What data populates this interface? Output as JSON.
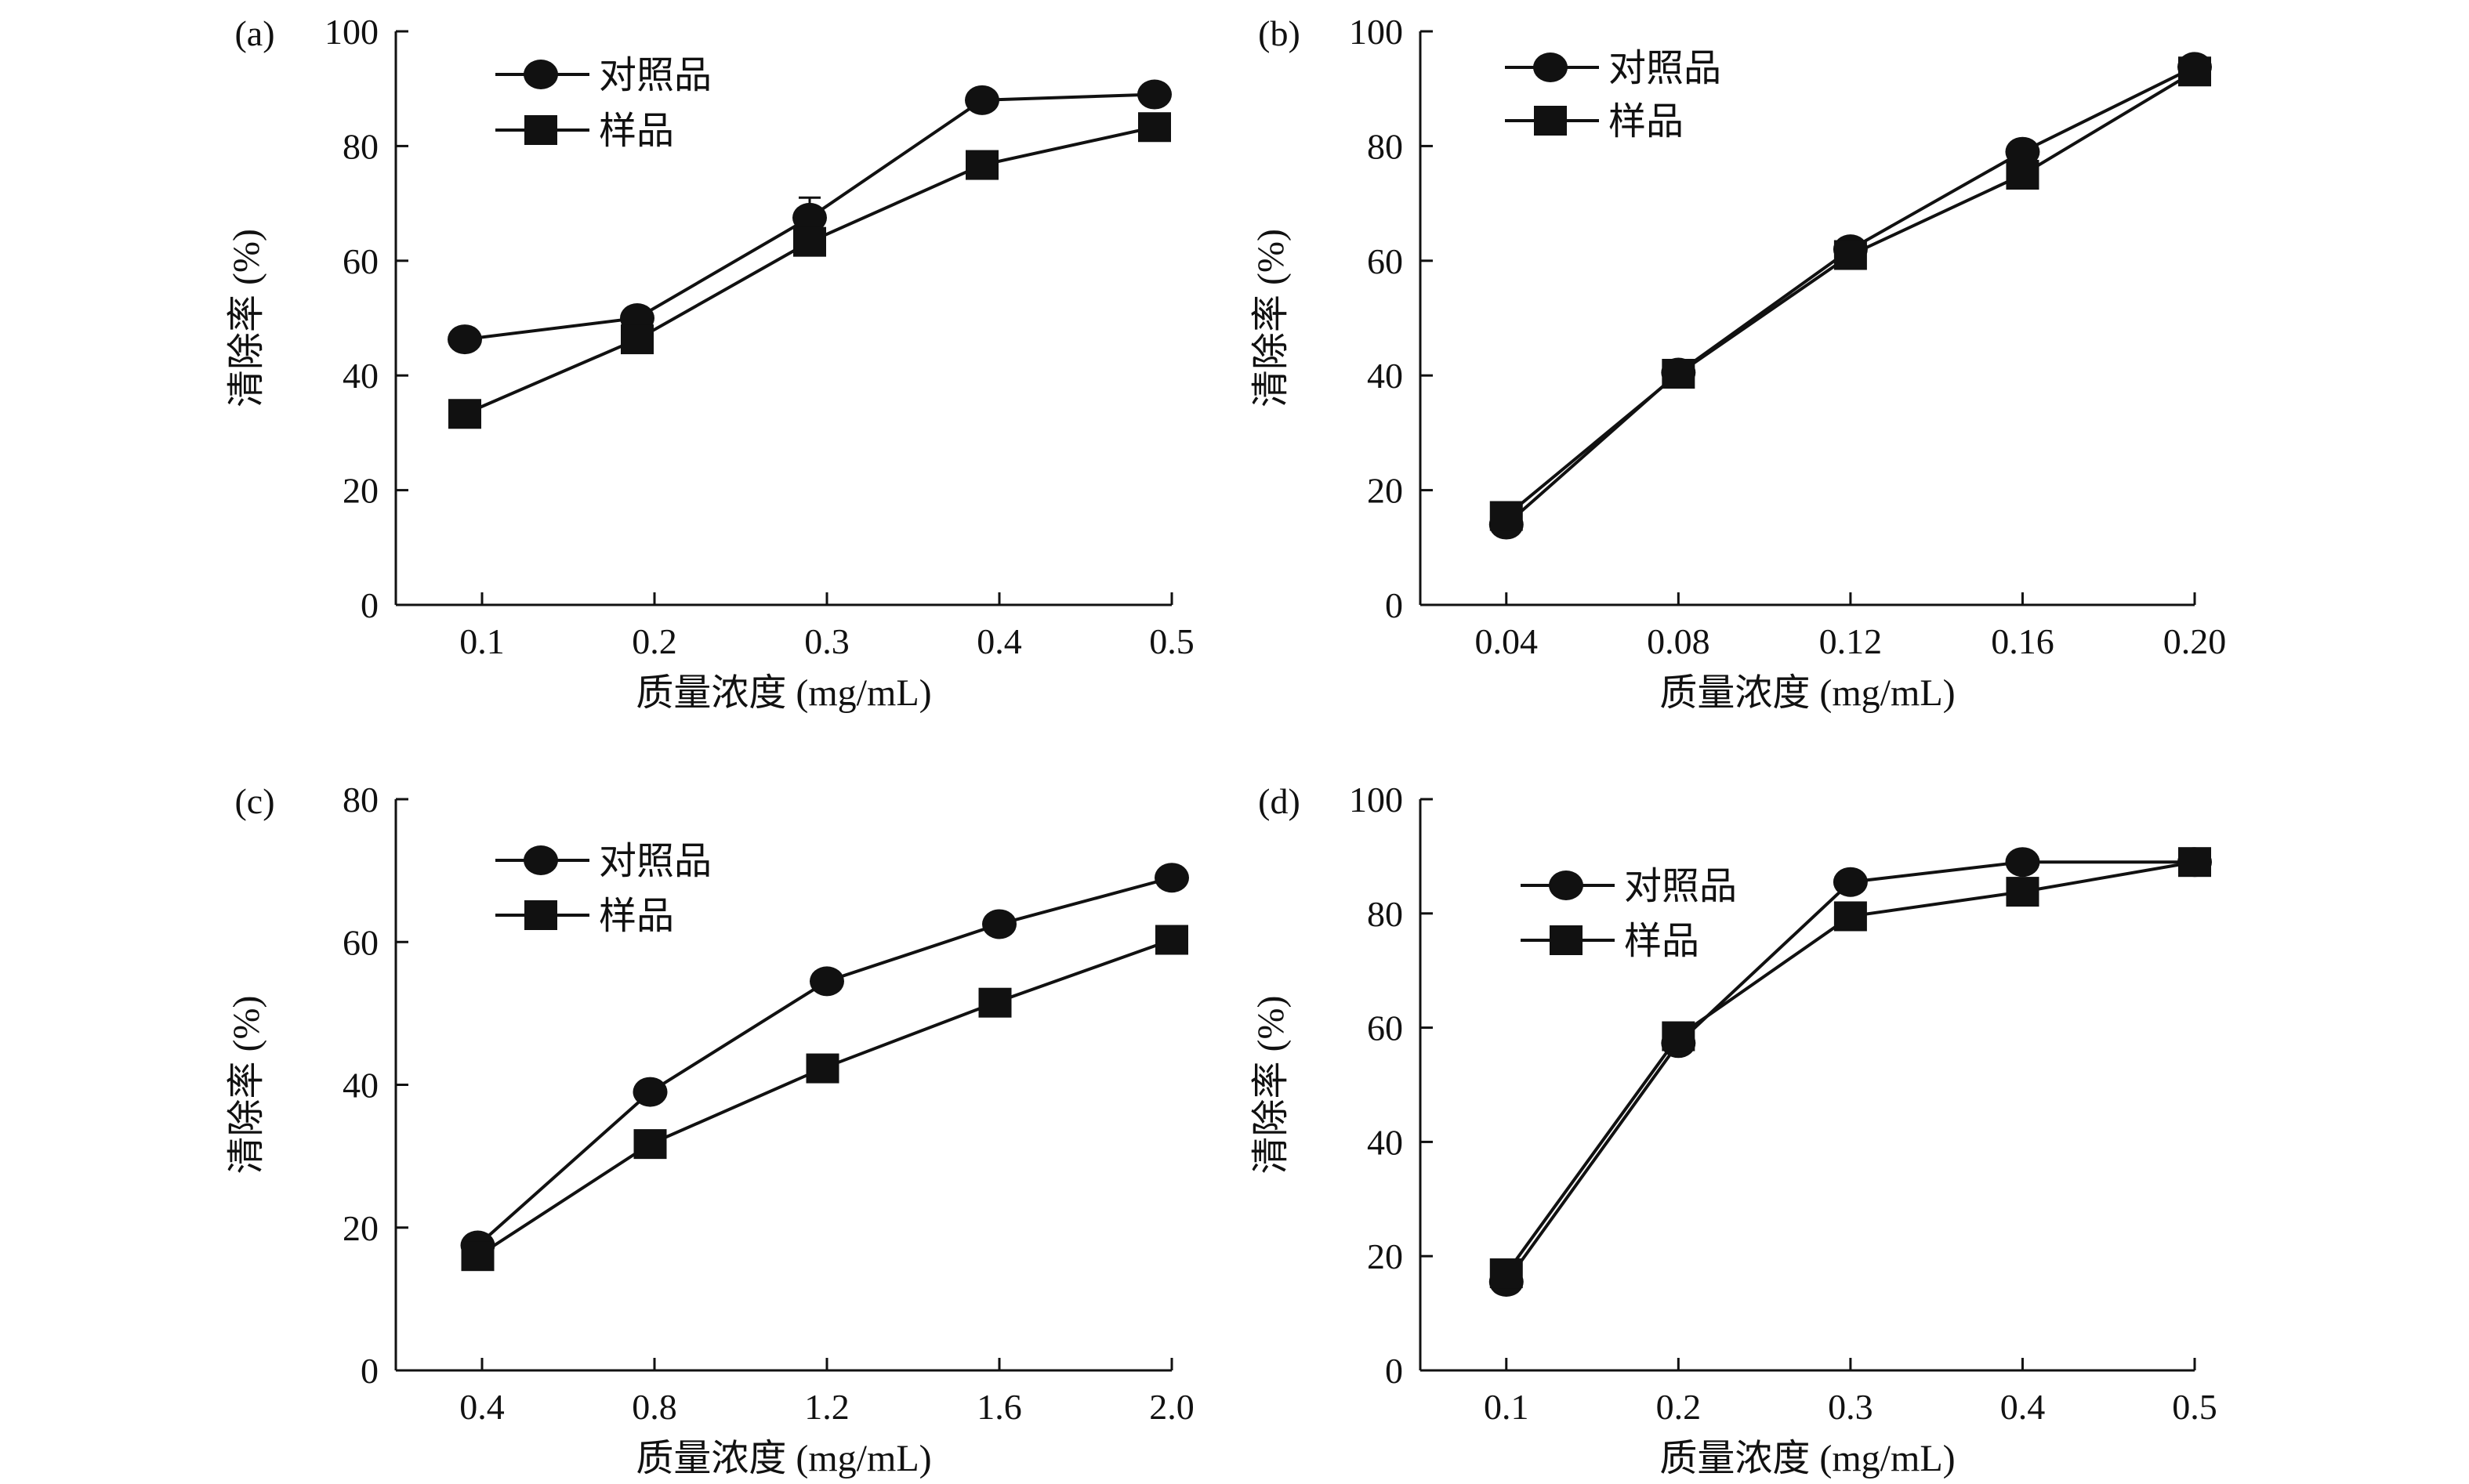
{
  "colors": {
    "line": "#111111",
    "background": "#ffffff"
  },
  "chart_data": [
    {
      "type": "line",
      "panel_label": "(a)",
      "xlabel": "质量浓度 (mg/mL)",
      "ylabel": "清除率 (%)",
      "x_ticks": [
        "0.1",
        "0.2",
        "0.3",
        "0.4",
        "0.5"
      ],
      "x_tick_values": [
        0.1,
        0.2,
        0.3,
        0.4,
        0.5
      ],
      "y_ticks": [
        "0",
        "20",
        "40",
        "60",
        "80",
        "100"
      ],
      "ylim": [
        0,
        100
      ],
      "xlim": [
        0.05,
        0.5
      ],
      "legend": "top-left",
      "series": [
        {
          "name": "对照品",
          "marker": "circle",
          "x": [
            0.09,
            0.19,
            0.29,
            0.39,
            0.49
          ],
          "y": [
            46.3,
            50,
            67.5,
            88,
            89
          ],
          "error_upper": [
            null,
            null,
            71,
            null,
            null
          ]
        },
        {
          "name": "样品",
          "marker": "square",
          "x": [
            0.09,
            0.19,
            0.29,
            0.39,
            0.49
          ],
          "y": [
            33.3,
            46.3,
            63.3,
            76.7,
            83.3
          ]
        }
      ]
    },
    {
      "type": "line",
      "panel_label": "(b)",
      "xlabel": "质量浓度 (mg/mL)",
      "ylabel": "清除率 (%)",
      "x_ticks": [
        "0.04",
        "0.08",
        "0.12",
        "0.16",
        "0.20"
      ],
      "x_tick_values": [
        0.04,
        0.08,
        0.12,
        0.16,
        0.2
      ],
      "y_ticks": [
        "0",
        "20",
        "40",
        "60",
        "80",
        "100"
      ],
      "ylim": [
        0,
        100
      ],
      "xlim": [
        0.02,
        0.2
      ],
      "legend": "top-left",
      "series": [
        {
          "name": "对照品",
          "marker": "circle",
          "x": [
            0.04,
            0.08,
            0.12,
            0.16,
            0.2
          ],
          "y": [
            14,
            40.5,
            62,
            79,
            93.8
          ]
        },
        {
          "name": "样品",
          "marker": "square",
          "x": [
            0.04,
            0.08,
            0.12,
            0.16,
            0.2
          ],
          "y": [
            15.5,
            40.3,
            61,
            75,
            93
          ]
        }
      ]
    },
    {
      "type": "line",
      "panel_label": "(c)",
      "xlabel": "质量浓度 (mg/mL)",
      "ylabel": "清除率 (%)",
      "x_ticks": [
        "0.4",
        "0.8",
        "1.2",
        "1.6",
        "2.0"
      ],
      "x_tick_values": [
        0.4,
        0.8,
        1.2,
        1.6,
        2.0
      ],
      "y_ticks": [
        "0",
        "20",
        "40",
        "60",
        "80"
      ],
      "ylim": [
        0,
        80
      ],
      "xlim": [
        0.2,
        2.0
      ],
      "legend": "top-left",
      "series": [
        {
          "name": "对照品",
          "marker": "circle",
          "x": [
            0.39,
            0.79,
            1.2,
            1.6,
            2.0
          ],
          "y": [
            17.5,
            39,
            54.5,
            62.5,
            69
          ]
        },
        {
          "name": "样品",
          "marker": "square",
          "x": [
            0.39,
            0.79,
            1.19,
            1.59,
            2.0
          ],
          "y": [
            16,
            31.7,
            42.3,
            51.5,
            60.3
          ]
        }
      ]
    },
    {
      "type": "line",
      "panel_label": "(d)",
      "xlabel": "质量浓度 (mg/mL)",
      "ylabel": "清除率 (%)",
      "x_ticks": [
        "0.1",
        "0.2",
        "0.3",
        "0.4",
        "0.5"
      ],
      "x_tick_values": [
        0.1,
        0.2,
        0.3,
        0.4,
        0.5
      ],
      "y_ticks": [
        "0",
        "20",
        "40",
        "60",
        "80",
        "100"
      ],
      "ylim": [
        0,
        100
      ],
      "xlim": [
        0.05,
        0.5
      ],
      "legend": "top-left",
      "series": [
        {
          "name": "对照品",
          "marker": "circle",
          "x": [
            0.1,
            0.2,
            0.3,
            0.4,
            0.5
          ],
          "y": [
            15.5,
            57.3,
            85.5,
            89,
            89
          ]
        },
        {
          "name": "样品",
          "marker": "square",
          "x": [
            0.1,
            0.2,
            0.3,
            0.4,
            0.5
          ],
          "y": [
            17,
            58.5,
            79.5,
            83.8,
            89
          ]
        }
      ]
    }
  ]
}
